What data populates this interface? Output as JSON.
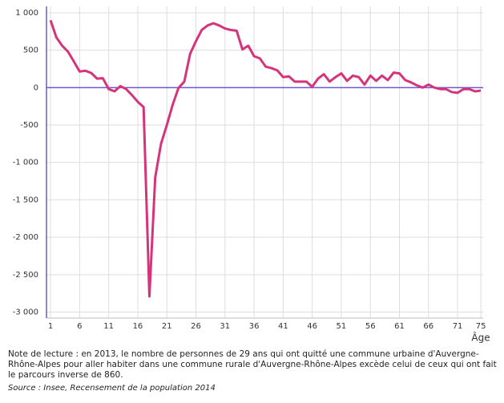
{
  "chart_data": {
    "type": "line",
    "x_label": "Âge",
    "x": [
      1,
      2,
      3,
      4,
      5,
      6,
      7,
      8,
      9,
      10,
      11,
      12,
      13,
      14,
      15,
      16,
      17,
      18,
      19,
      20,
      21,
      22,
      23,
      24,
      25,
      26,
      27,
      28,
      29,
      30,
      31,
      32,
      33,
      34,
      35,
      36,
      37,
      38,
      39,
      40,
      41,
      42,
      43,
      44,
      45,
      46,
      47,
      48,
      49,
      50,
      51,
      52,
      53,
      54,
      55,
      56,
      57,
      58,
      59,
      60,
      61,
      62,
      63,
      64,
      65,
      66,
      67,
      68,
      69,
      70,
      71,
      72,
      73,
      74,
      75
    ],
    "values": [
      900,
      670,
      560,
      480,
      350,
      215,
      225,
      195,
      120,
      125,
      -20,
      -50,
      20,
      -20,
      -100,
      -190,
      -260,
      -2790,
      -1200,
      -750,
      -500,
      -230,
      -5,
      80,
      450,
      620,
      770,
      830,
      860,
      830,
      790,
      770,
      760,
      510,
      560,
      420,
      390,
      280,
      260,
      230,
      140,
      150,
      80,
      80,
      80,
      10,
      120,
      180,
      80,
      140,
      190,
      90,
      160,
      140,
      40,
      160,
      90,
      160,
      100,
      200,
      190,
      100,
      70,
      30,
      0,
      40,
      0,
      -20,
      -20,
      -60,
      -70,
      -20,
      -20,
      -50,
      -40
    ],
    "color": "#d6347a",
    "zero_line_color": "#6a5acd",
    "xlim": [
      0.3,
      75.4
    ],
    "ylim": [
      -3080,
      1085
    ],
    "xticks": [
      1,
      6,
      11,
      16,
      21,
      26,
      31,
      36,
      41,
      46,
      51,
      56,
      61,
      66,
      71,
      75
    ],
    "yticks": [
      {
        "value": 1000,
        "label": "1 000"
      },
      500,
      0,
      -500,
      {
        "value": -1000,
        "label": "-1 000"
      },
      {
        "value": -1500,
        "label": "-1 500"
      },
      {
        "value": -2000,
        "label": "-2 000"
      },
      {
        "value": -2500,
        "label": "-2 500"
      },
      {
        "value": -3000,
        "label": "-3 000"
      }
    ],
    "grid": true,
    "note": "Note de lecture : en 2013, le nombre de personnes de 29 ans qui ont quitté une commune urbaine d'Auvergne-Rhône-Alpes pour aller habiter dans une commune rurale d'Auvergne-Rhône-Alpes excède celui de ceux qui ont fait le parcours inverse de 860.",
    "source": "Source : Insee, Recensement de la population 2014"
  }
}
